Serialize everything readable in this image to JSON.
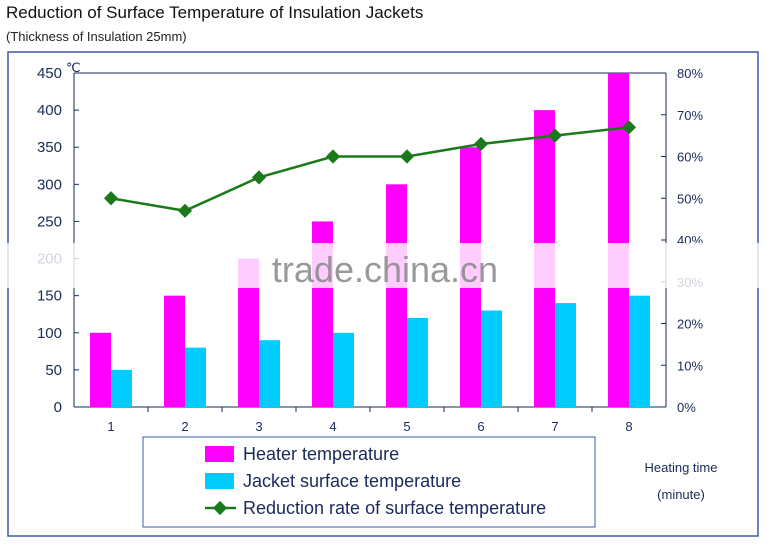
{
  "title": "Reduction of Surface Temperature of Insulation Jackets",
  "subtitle": "(Thickness of Insulation 25mm)",
  "watermark": "trade.china.cn",
  "chart_data": {
    "type": "bar",
    "categories": [
      "1",
      "2",
      "3",
      "4",
      "5",
      "6",
      "7",
      "8"
    ],
    "xlabel": "Heating time (minute)",
    "xlabel_lines": [
      "Heating time",
      "(minute)"
    ],
    "y_left": {
      "unit": "℃",
      "ylim": [
        0,
        450
      ],
      "ticks": [
        "0",
        "50",
        "100",
        "150",
        "200",
        "250",
        "300",
        "350",
        "400",
        "450"
      ]
    },
    "y_right": {
      "ylim": [
        0,
        80
      ],
      "ticks": [
        "0%",
        "10%",
        "20%",
        "30%",
        "40%",
        "50%",
        "60%",
        "70%",
        "80%"
      ]
    },
    "series": [
      {
        "name": "Heater temperature",
        "type": "bar",
        "axis": "left",
        "color": "#ff00ff",
        "values": [
          100,
          150,
          200,
          250,
          300,
          350,
          400,
          450
        ]
      },
      {
        "name": "Jacket surface temperature",
        "type": "bar",
        "axis": "left",
        "color": "#00ccff",
        "values": [
          50,
          80,
          90,
          100,
          120,
          130,
          140,
          150
        ]
      },
      {
        "name": "Reduction rate of surface temperature",
        "type": "line",
        "axis": "right",
        "unit": "%",
        "color": "#1a7a1a",
        "values": [
          50,
          47,
          55,
          60,
          60,
          63,
          65,
          67
        ]
      }
    ],
    "grid": false,
    "legend_placement": "bottom"
  }
}
